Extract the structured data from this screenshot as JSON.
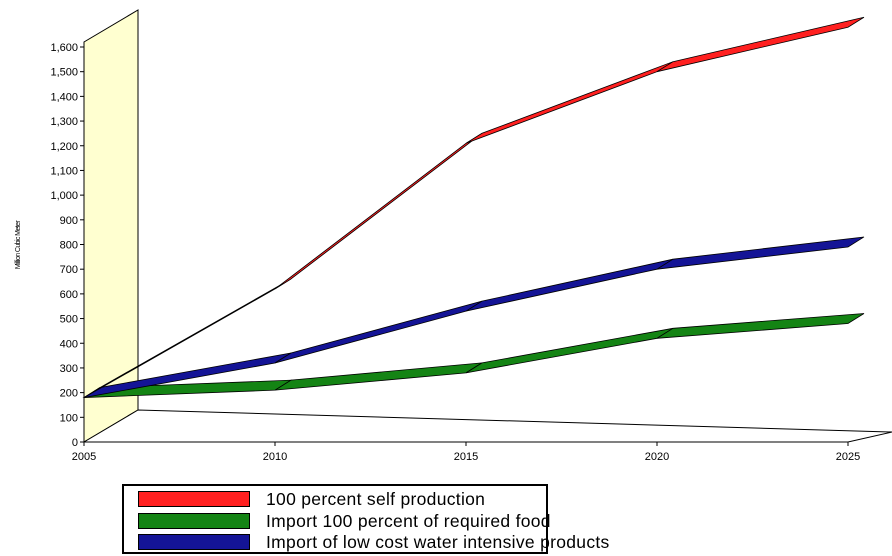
{
  "chart_data": {
    "type": "line",
    "title": "",
    "xlabel": "",
    "ylabel": "Million Cubic Meter",
    "x": [
      2005,
      2010,
      2015,
      2020,
      2025
    ],
    "xlim": [
      2005,
      2025
    ],
    "ylim": [
      0,
      1600
    ],
    "x_ticks": [
      "2005",
      "2010",
      "2015",
      "2020",
      "2025"
    ],
    "y_ticks": [
      "0",
      "100",
      "200",
      "300",
      "400",
      "500",
      "600",
      "700",
      "800",
      "900",
      "1,000",
      "1,100",
      "1,200",
      "1,300",
      "1,400",
      "1,500",
      "1,600"
    ],
    "grid": false,
    "legend_position": "bottom",
    "style": "3d",
    "series": [
      {
        "name": "100 percent self production",
        "color": "#ff2020",
        "values": [
          180,
          620,
          1210,
          1500,
          1680
        ]
      },
      {
        "name": "Import 100 percent of required food",
        "color": "#148414",
        "values": [
          180,
          210,
          280,
          420,
          480
        ]
      },
      {
        "name": "Import of low cost water intensive products",
        "color": "#141496",
        "values": [
          180,
          320,
          530,
          700,
          790
        ]
      }
    ]
  },
  "colors": {
    "wall": "#ffffd0",
    "axis": "#000000"
  }
}
